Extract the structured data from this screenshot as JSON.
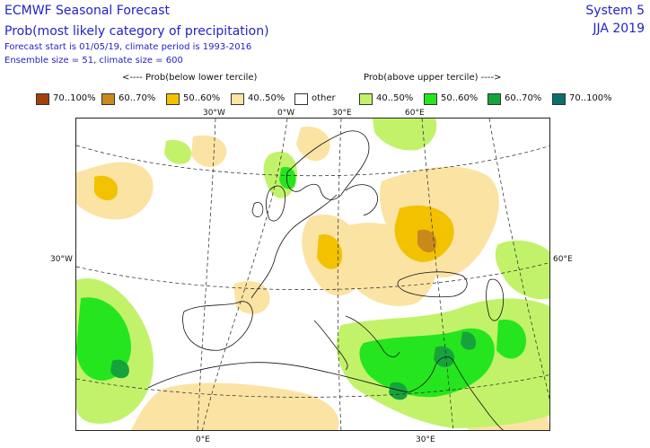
{
  "header": {
    "title": "ECMWF Seasonal Forecast",
    "subtitle": "Prob(most likely category of precipitation)",
    "forecast_info": "Forecast start is 01/05/19, climate period is 1993-2016",
    "ensemble_info": "Ensemble size = 51, climate size = 600",
    "system": "System 5",
    "season": "JJA 2019"
  },
  "legend": {
    "below_caption": "<---- Prob(below lower tercile)",
    "above_caption": "Prob(above upper tercile) ---->",
    "items": [
      {
        "label": "70..100%",
        "color": "#a0420a"
      },
      {
        "label": "60..70%",
        "color": "#c98a1c"
      },
      {
        "label": "50..60%",
        "color": "#f2c200"
      },
      {
        "label": "40..50%",
        "color": "#fbe3a4"
      },
      {
        "label": "other",
        "color": "#ffffff"
      },
      {
        "label": "40..50%",
        "color": "#c2f26a"
      },
      {
        "label": "50..60%",
        "color": "#25e61e"
      },
      {
        "label": "60..70%",
        "color": "#17a33c"
      },
      {
        "label": "70..100%",
        "color": "#0d6e6e"
      }
    ]
  },
  "map": {
    "lon_labels_top": [
      "30°W",
      "0°W",
      "30°E",
      "60°E"
    ],
    "lon_labels_bottom": [
      "0°E",
      "30°E"
    ],
    "lat_left": "30°W",
    "lat_right": "60°E"
  }
}
